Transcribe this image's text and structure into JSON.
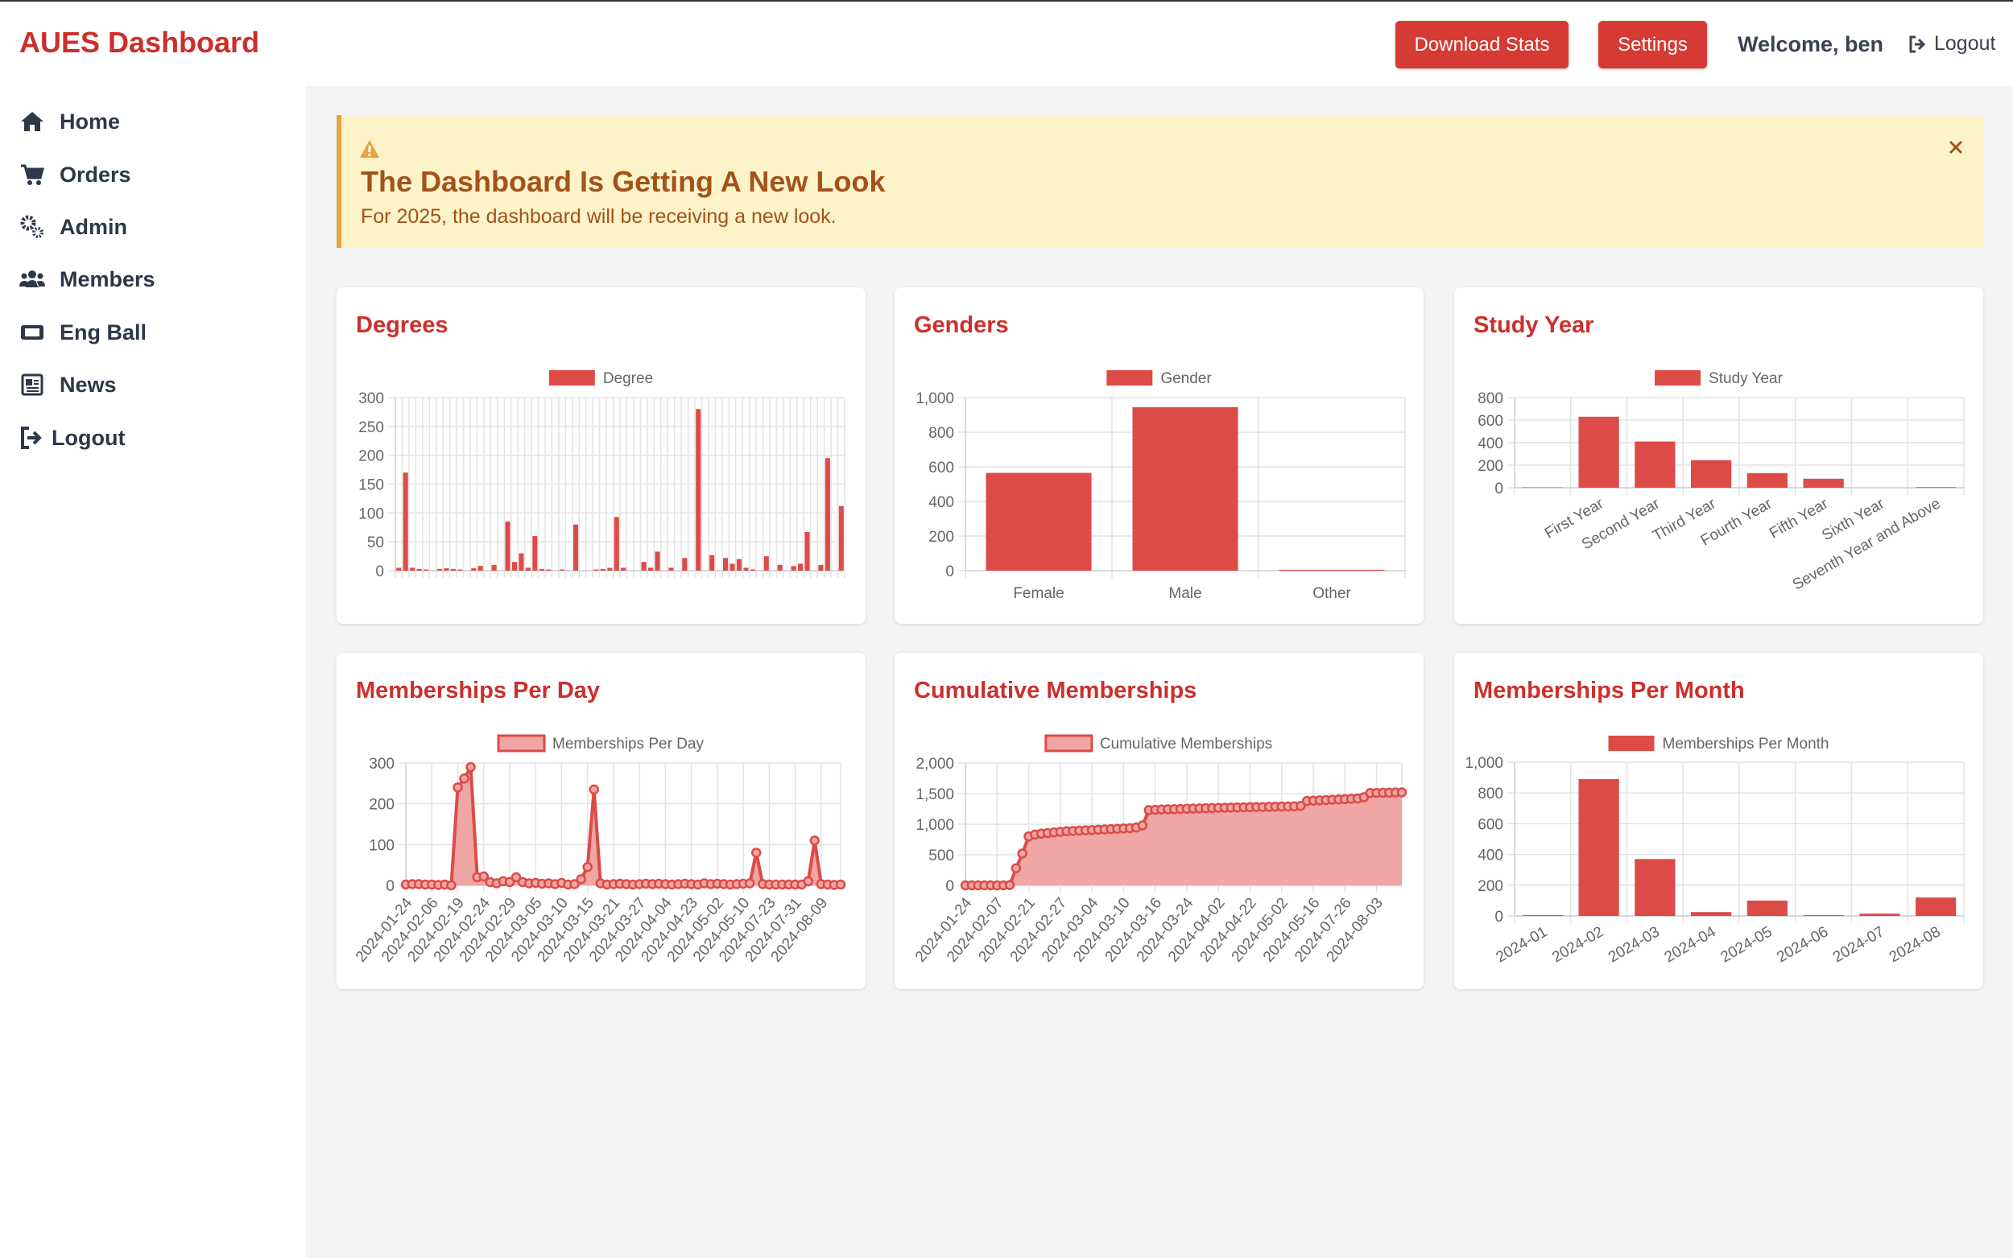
{
  "header": {
    "brand": "AUES Dashboard",
    "buttons": [
      "Download Stats",
      "Settings"
    ],
    "welcome": "Welcome, ben",
    "logout": "Logout"
  },
  "sidebar": [
    "Home",
    "Orders",
    "Admin",
    "Members",
    "Eng Ball",
    "News",
    "Logout"
  ],
  "alert": {
    "title": "The Dashboard Is Getting A New Look",
    "text": "For 2025, the dashboard will be receiving a new look."
  },
  "chart_data": [
    {
      "type": "bar",
      "title": "Degrees",
      "series": [
        {
          "name": "Degree",
          "color": "#dd4b47",
          "values": [
            5,
            170,
            5,
            3,
            2,
            0,
            3,
            4,
            3,
            2,
            0,
            4,
            8,
            0,
            10,
            0,
            85,
            15,
            30,
            5,
            60,
            3,
            2,
            0,
            2,
            0,
            80,
            0,
            0,
            2,
            3,
            5,
            93,
            5,
            0,
            0,
            15,
            5,
            33,
            0,
            5,
            0,
            22,
            0,
            280,
            0,
            27,
            0,
            22,
            12,
            20,
            5,
            2,
            0,
            25,
            0,
            10,
            0,
            8,
            12,
            67,
            0,
            10,
            195,
            0,
            112
          ]
        }
      ],
      "categories": [
        null,
        null,
        null,
        null,
        null,
        null,
        null,
        null,
        null,
        null,
        null,
        null,
        null,
        null,
        null,
        null,
        null,
        null,
        null,
        null,
        null,
        null,
        null,
        null,
        null,
        null,
        null,
        null,
        null,
        null,
        null,
        null,
        null,
        null,
        null,
        null,
        null,
        null,
        null,
        null,
        null,
        null,
        null,
        null,
        null,
        null,
        null,
        null,
        null,
        null,
        null,
        null,
        null,
        null,
        null,
        null,
        null,
        null,
        null,
        null,
        null,
        null,
        null,
        null,
        null,
        null
      ],
      "ylim": [
        0,
        300
      ],
      "yticks": [
        0,
        50,
        100,
        150,
        200,
        250,
        300
      ],
      "grid": true
    },
    {
      "type": "bar",
      "title": "Genders",
      "series": [
        {
          "name": "Gender",
          "color": "#dd4b47",
          "values": [
            565,
            945,
            5
          ]
        }
      ],
      "categories": [
        "Female",
        "Male",
        "Other"
      ],
      "ylim": [
        0,
        1000
      ],
      "yticks": [
        0,
        200,
        400,
        600,
        800,
        {
          "value": 1000,
          "label": "1,000"
        }
      ],
      "grid": true
    },
    {
      "type": "bar",
      "title": "Study Year",
      "series": [
        {
          "name": "Study Year",
          "color": "#dd4b47",
          "values": [
            3,
            630,
            410,
            245,
            130,
            80,
            0,
            5
          ]
        }
      ],
      "categories": [
        null,
        "First Year",
        "Second Year",
        "Third Year",
        "Fourth Year",
        "Fifth Year",
        "Sixth Year",
        "Seventh Year and Above"
      ],
      "ylim": [
        0,
        800
      ],
      "yticks": [
        0,
        200,
        400,
        600,
        800
      ],
      "grid": true
    },
    {
      "type": "line",
      "title": "Memberships Per Day",
      "fill": "#efa6a4",
      "series": [
        {
          "name": "Memberships Per Day",
          "color": "#dd4b47",
          "values": [
            2,
            3,
            3,
            2,
            2,
            1,
            2,
            0,
            240,
            262,
            290,
            20,
            22,
            8,
            5,
            10,
            8,
            20,
            8,
            5,
            6,
            4,
            5,
            3,
            6,
            2,
            3,
            15,
            45,
            235,
            5,
            2,
            3,
            4,
            3,
            2,
            3,
            4,
            3,
            4,
            3,
            2,
            3,
            4,
            3,
            2,
            5,
            3,
            4,
            3,
            2,
            3,
            4,
            5,
            80,
            3,
            2,
            2,
            2,
            2,
            2,
            2,
            10,
            110,
            3,
            2,
            1,
            2
          ]
        }
      ],
      "categories": [
        "2024-01-24",
        null,
        null,
        null,
        "2024-02-06",
        null,
        null,
        null,
        "2024-02-19",
        null,
        null,
        null,
        "2024-02-24",
        null,
        null,
        null,
        "2024-02-29",
        null,
        null,
        null,
        "2024-03-05",
        null,
        null,
        null,
        "2024-03-10",
        null,
        null,
        null,
        "2024-03-15",
        null,
        null,
        null,
        "2024-03-21",
        null,
        null,
        null,
        "2024-03-27",
        null,
        null,
        null,
        "2024-04-04",
        null,
        null,
        null,
        "2024-04-23",
        null,
        null,
        null,
        "2024-05-02",
        null,
        null,
        null,
        "2024-05-10",
        null,
        null,
        null,
        "2024-07-23",
        null,
        null,
        null,
        "2024-07-31",
        null,
        null,
        null,
        "2024-08-09",
        null,
        null,
        null
      ],
      "ylim": [
        0,
        300
      ],
      "yticks": [
        0,
        100,
        200,
        300
      ],
      "grid": true
    },
    {
      "type": "line",
      "title": "Cumulative Memberships",
      "fill": "#efa6a4",
      "series": [
        {
          "name": "Cumulative Memberships",
          "color": "#dd4b47",
          "values": [
            0,
            0,
            0,
            0,
            0,
            0,
            0,
            5,
            280,
            520,
            800,
            830,
            845,
            855,
            865,
            875,
            885,
            890,
            895,
            900,
            905,
            910,
            915,
            920,
            925,
            930,
            935,
            945,
            980,
            1230,
            1235,
            1240,
            1243,
            1246,
            1249,
            1252,
            1255,
            1258,
            1261,
            1264,
            1267,
            1270,
            1272,
            1274,
            1276,
            1278,
            1280,
            1282,
            1284,
            1286,
            1288,
            1290,
            1292,
            1300,
            1380,
            1385,
            1390,
            1395,
            1400,
            1405,
            1410,
            1415,
            1420,
            1440,
            1510,
            1512,
            1514,
            1516,
            1518,
            1520
          ]
        }
      ],
      "categories": [
        "2024-01-24",
        null,
        null,
        null,
        null,
        "2024-02-07",
        null,
        null,
        null,
        null,
        "2024-02-21",
        null,
        null,
        null,
        null,
        "2024-02-27",
        null,
        null,
        null,
        null,
        "2024-03-04",
        null,
        null,
        null,
        null,
        "2024-03-10",
        null,
        null,
        null,
        null,
        "2024-03-16",
        null,
        null,
        null,
        null,
        "2024-03-24",
        null,
        null,
        null,
        null,
        "2024-04-02",
        null,
        null,
        null,
        null,
        "2024-04-22",
        null,
        null,
        null,
        null,
        "2024-05-02",
        null,
        null,
        null,
        null,
        "2024-05-16",
        null,
        null,
        null,
        null,
        "2024-07-26",
        null,
        null,
        null,
        null,
        "2024-08-03",
        null,
        null,
        null,
        null
      ],
      "ylim": [
        0,
        2000
      ],
      "yticks": [
        0,
        500,
        {
          "value": 1000,
          "label": "1,000"
        },
        {
          "value": 1500,
          "label": "1,500"
        },
        {
          "value": 2000,
          "label": "2,000"
        }
      ],
      "grid": true
    },
    {
      "type": "bar",
      "title": "Memberships Per Month",
      "series": [
        {
          "name": "Memberships Per Month",
          "color": "#dd4b47",
          "values": [
            5,
            890,
            370,
            25,
            100,
            5,
            15,
            120
          ]
        }
      ],
      "categories": [
        "2024-01",
        "2024-02",
        "2024-03",
        "2024-04",
        "2024-05",
        "2024-06",
        "2024-07",
        "2024-08"
      ],
      "ylim": [
        0,
        1000
      ],
      "yticks": [
        0,
        200,
        400,
        600,
        800,
        {
          "value": 1000,
          "label": "1,000"
        }
      ],
      "grid": true
    }
  ]
}
